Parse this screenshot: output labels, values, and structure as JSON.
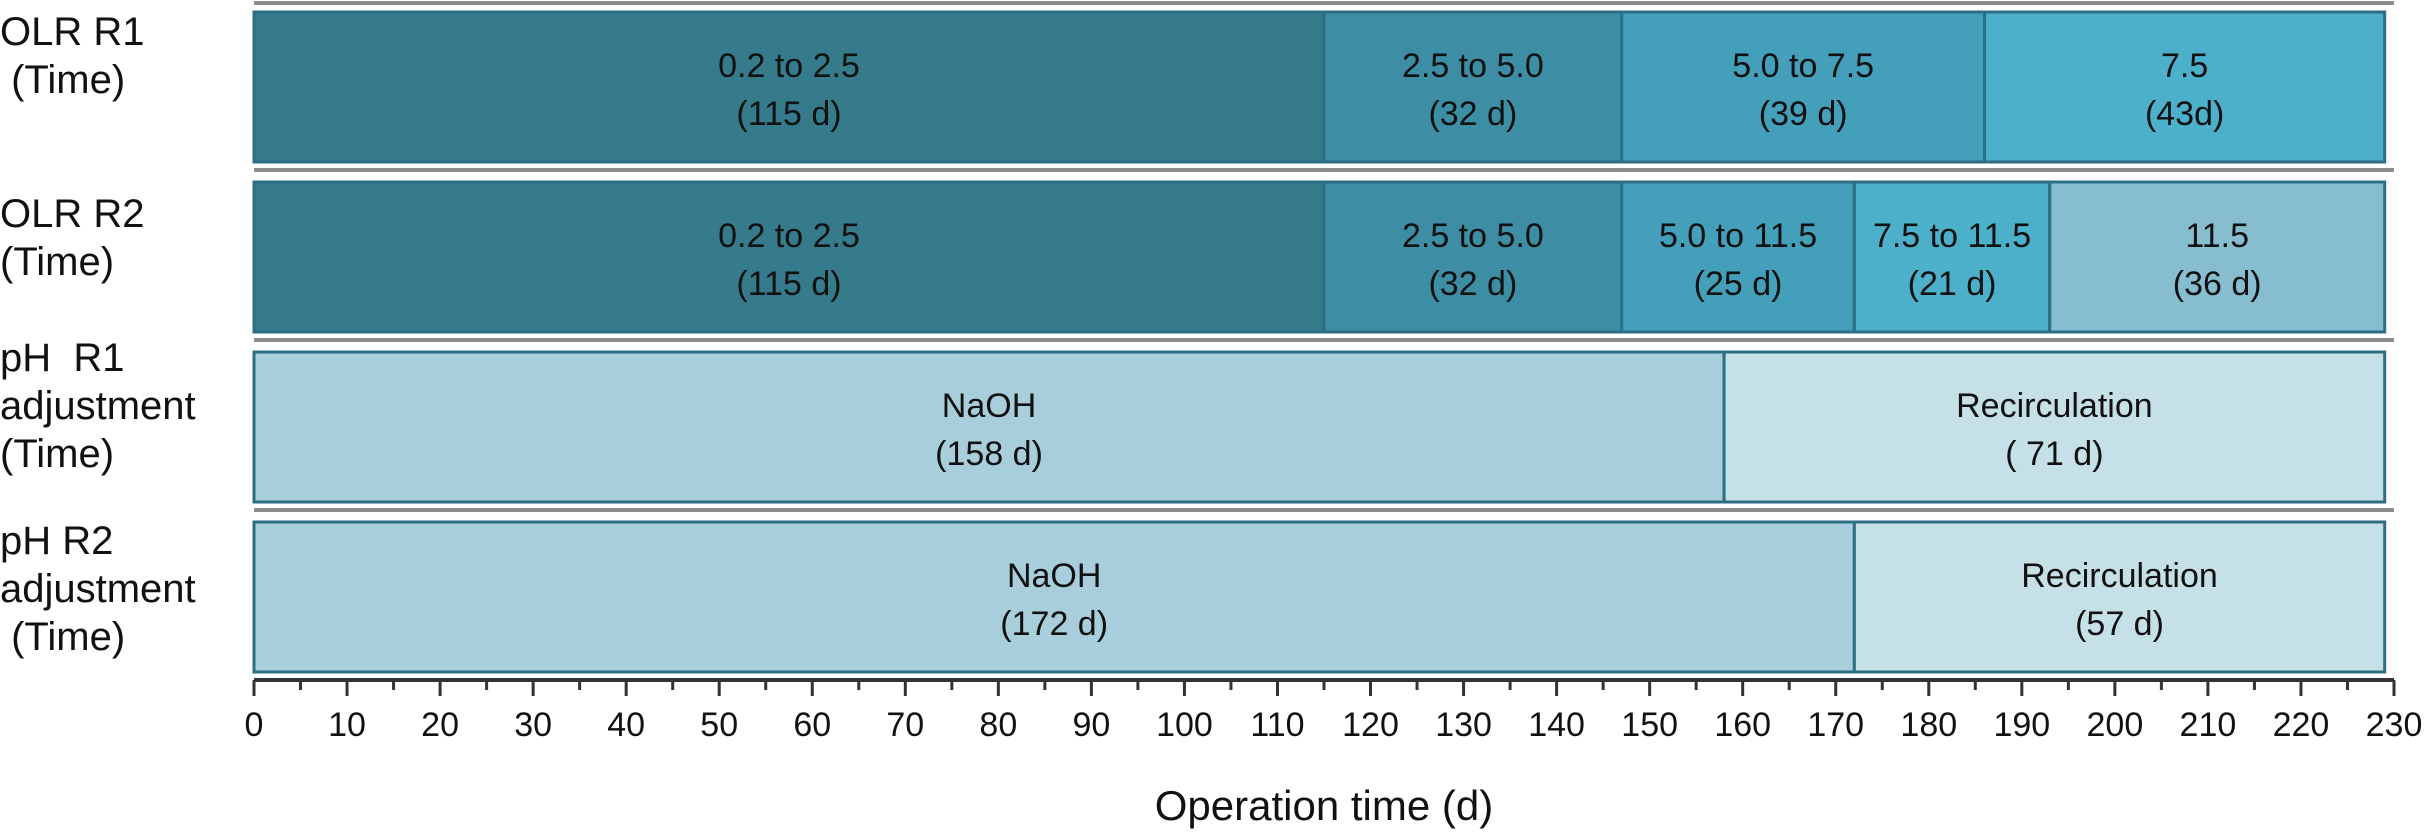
{
  "chart_data": {
    "type": "bar",
    "orientation": "horizontal",
    "stacked": true,
    "xlabel": "Operation time (d)",
    "xlim": [
      0,
      230
    ],
    "xticks": [
      0,
      10,
      20,
      30,
      40,
      50,
      60,
      70,
      80,
      90,
      100,
      110,
      120,
      130,
      140,
      150,
      160,
      170,
      180,
      190,
      200,
      210,
      220,
      230
    ],
    "rows": [
      {
        "label": "OLR R1\n (Time)",
        "segments": [
          {
            "start": 0,
            "end": 115,
            "text": "0.2 to 2.5",
            "duration": "(115 d)",
            "color": "#357B8B"
          },
          {
            "start": 115,
            "end": 147,
            "text": "2.5 to 5.0",
            "duration": "(32 d)",
            "color": "#3D8EA4"
          },
          {
            "start": 147,
            "end": 186,
            "text": "5.0  to 7.5",
            "duration": "(39 d)",
            "color": "#449FBA"
          },
          {
            "start": 186,
            "end": 229,
            "text": "7.5",
            "duration": "(43d)",
            "color": "#4DB0CB"
          }
        ]
      },
      {
        "label": "OLR R2\n(Time)",
        "segments": [
          {
            "start": 0,
            "end": 115,
            "text": "0.2 to 2.5",
            "duration": "(115 d)",
            "color": "#357B8B"
          },
          {
            "start": 115,
            "end": 147,
            "text": "2.5 to 5.0",
            "duration": "(32 d)",
            "color": "#3D8EA4"
          },
          {
            "start": 147,
            "end": 172,
            "text": "5.0 to 11.5",
            "duration": "(25 d)",
            "color": "#449FBA"
          },
          {
            "start": 172,
            "end": 193,
            "text": "7.5 to 11.5",
            "duration": "(21 d)",
            "color": "#4DB0CB"
          },
          {
            "start": 193,
            "end": 229,
            "text": "11.5",
            "duration": "(36 d)",
            "color": "#86BED0"
          }
        ]
      },
      {
        "label": "pH  R1\nadjustment\n(Time)",
        "segments": [
          {
            "start": 0,
            "end": 158,
            "text": "NaOH",
            "duration": "(158 d)",
            "color": "#A8CEDC"
          },
          {
            "start": 158,
            "end": 229,
            "text": "Recirculation",
            "duration": "( 71 d)",
            "color": "#C6E0E7"
          }
        ]
      },
      {
        "label": "pH R2\nadjustment\n (Time)",
        "segments": [
          {
            "start": 0,
            "end": 172,
            "text": "NaOH",
            "duration": "(172 d)",
            "color": "#A8CEDC"
          },
          {
            "start": 172,
            "end": 229,
            "text": "Recirculation",
            "duration": "(57 d)",
            "color": "#C6E0E7"
          }
        ]
      }
    ]
  },
  "colors": {
    "segment_border": "#2D6E84",
    "row_frame": "#8C8C8C",
    "axis": "#333333",
    "text": "#111111"
  }
}
